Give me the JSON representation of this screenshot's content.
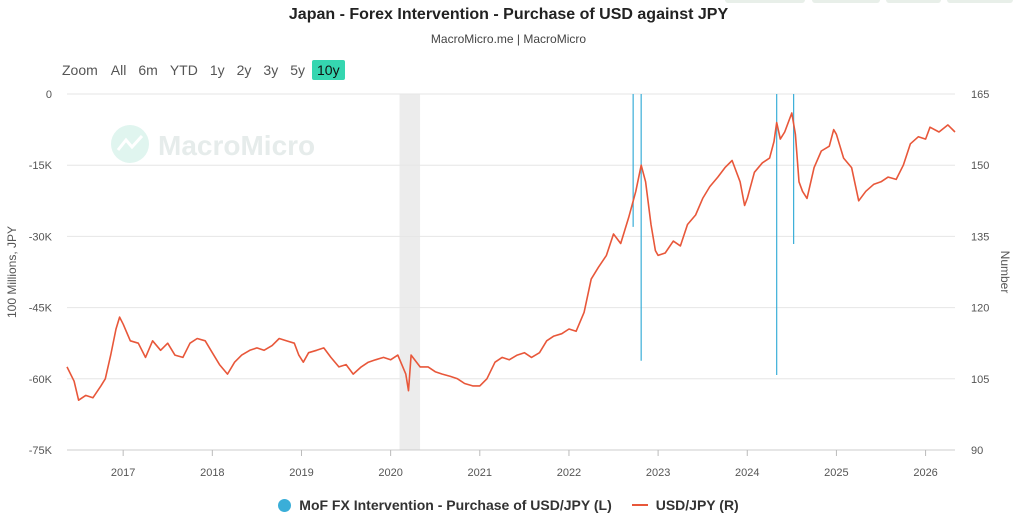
{
  "chart_data": {
    "type": "line",
    "title": "Japan - Forex Intervention - Purchase of USD against JPY",
    "subtitle": "MacroMicro.me | MacroMicro",
    "watermark": "MacroMicro",
    "zoom": {
      "label": "Zoom",
      "options": [
        "All",
        "6m",
        "YTD",
        "1y",
        "2y",
        "3y",
        "5y",
        "10y"
      ],
      "selected": "10y"
    },
    "left_axis": {
      "label": "100 Millions, JPY",
      "ticks": [
        0,
        -15000,
        -30000,
        -45000,
        -60000,
        -75000
      ],
      "tick_labels": [
        "0",
        "-15K",
        "-30K",
        "-45K",
        "-60K",
        "-75K"
      ],
      "range": [
        -75000,
        0
      ]
    },
    "right_axis": {
      "label": "Number",
      "ticks": [
        165,
        150,
        135,
        120,
        105,
        90
      ],
      "tick_labels": [
        "165",
        "150",
        "135",
        "120",
        "105",
        "90"
      ],
      "range": [
        90,
        165
      ]
    },
    "x_axis": {
      "range": [
        "2016-05",
        "2026-05"
      ],
      "tick_labels": [
        "2017",
        "2018",
        "2019",
        "2020",
        "2021",
        "2022",
        "2023",
        "2024",
        "2025",
        "2026"
      ],
      "tick_values": [
        2017,
        2018,
        2019,
        2020,
        2021,
        2022,
        2023,
        2024,
        2025,
        2026
      ]
    },
    "recession_band": {
      "start": 2020.1,
      "end": 2020.33
    },
    "grid": true,
    "legend_position": "bottom",
    "series": [
      {
        "name": "MoF FX Intervention - Purchase of USD/JPY (L)",
        "axis": "left",
        "style": "spike",
        "color": "#3aaed8",
        "points": [
          {
            "x": 2022.72,
            "y": -28000
          },
          {
            "x": 2022.81,
            "y": -56200
          },
          {
            "x": 2024.33,
            "y": -59200
          },
          {
            "x": 2024.52,
            "y": -31600
          }
        ]
      },
      {
        "name": "USD/JPY (R)",
        "axis": "right",
        "style": "line",
        "color": "#e8573a",
        "points": [
          [
            2016.37,
            107.5
          ],
          [
            2016.45,
            104.5
          ],
          [
            2016.5,
            100.5
          ],
          [
            2016.58,
            101.5
          ],
          [
            2016.66,
            101.0
          ],
          [
            2016.75,
            103.5
          ],
          [
            2016.8,
            105.0
          ],
          [
            2016.86,
            110.0
          ],
          [
            2016.92,
            115.5
          ],
          [
            2016.96,
            118.0
          ],
          [
            2017.0,
            116.5
          ],
          [
            2017.08,
            113.0
          ],
          [
            2017.17,
            112.5
          ],
          [
            2017.25,
            109.5
          ],
          [
            2017.33,
            113.0
          ],
          [
            2017.42,
            111.0
          ],
          [
            2017.5,
            112.5
          ],
          [
            2017.58,
            110.0
          ],
          [
            2017.67,
            109.5
          ],
          [
            2017.75,
            112.5
          ],
          [
            2017.83,
            113.5
          ],
          [
            2017.92,
            113.0
          ],
          [
            2018.0,
            110.5
          ],
          [
            2018.08,
            108.0
          ],
          [
            2018.17,
            106.0
          ],
          [
            2018.25,
            108.5
          ],
          [
            2018.33,
            110.0
          ],
          [
            2018.42,
            111.0
          ],
          [
            2018.5,
            111.5
          ],
          [
            2018.58,
            111.0
          ],
          [
            2018.67,
            112.0
          ],
          [
            2018.75,
            113.5
          ],
          [
            2018.83,
            113.0
          ],
          [
            2018.92,
            112.5
          ],
          [
            2018.97,
            110.0
          ],
          [
            2019.02,
            108.5
          ],
          [
            2019.08,
            110.5
          ],
          [
            2019.17,
            111.0
          ],
          [
            2019.25,
            111.5
          ],
          [
            2019.33,
            109.5
          ],
          [
            2019.42,
            107.5
          ],
          [
            2019.5,
            108.0
          ],
          [
            2019.58,
            106.0
          ],
          [
            2019.67,
            107.5
          ],
          [
            2019.75,
            108.5
          ],
          [
            2019.83,
            109.0
          ],
          [
            2019.92,
            109.5
          ],
          [
            2020.0,
            109.0
          ],
          [
            2020.08,
            110.0
          ],
          [
            2020.17,
            106.0
          ],
          [
            2020.2,
            102.5
          ],
          [
            2020.23,
            110.0
          ],
          [
            2020.33,
            107.5
          ],
          [
            2020.42,
            107.5
          ],
          [
            2020.5,
            106.5
          ],
          [
            2020.58,
            106.0
          ],
          [
            2020.67,
            105.5
          ],
          [
            2020.75,
            105.0
          ],
          [
            2020.83,
            104.0
          ],
          [
            2020.92,
            103.5
          ],
          [
            2021.0,
            103.5
          ],
          [
            2021.08,
            105.0
          ],
          [
            2021.17,
            108.5
          ],
          [
            2021.25,
            109.5
          ],
          [
            2021.33,
            109.0
          ],
          [
            2021.42,
            110.0
          ],
          [
            2021.5,
            110.5
          ],
          [
            2021.58,
            109.5
          ],
          [
            2021.67,
            110.5
          ],
          [
            2021.75,
            113.0
          ],
          [
            2021.83,
            114.0
          ],
          [
            2021.92,
            114.5
          ],
          [
            2022.0,
            115.5
          ],
          [
            2022.08,
            115.0
          ],
          [
            2022.17,
            119.0
          ],
          [
            2022.25,
            126.0
          ],
          [
            2022.33,
            128.5
          ],
          [
            2022.42,
            131.0
          ],
          [
            2022.5,
            135.5
          ],
          [
            2022.58,
            133.5
          ],
          [
            2022.67,
            139.0
          ],
          [
            2022.75,
            144.5
          ],
          [
            2022.81,
            150.0
          ],
          [
            2022.86,
            146.5
          ],
          [
            2022.92,
            137.5
          ],
          [
            2022.97,
            132.0
          ],
          [
            2023.0,
            131.0
          ],
          [
            2023.08,
            131.5
          ],
          [
            2023.17,
            134.0
          ],
          [
            2023.25,
            133.0
          ],
          [
            2023.33,
            137.5
          ],
          [
            2023.42,
            139.5
          ],
          [
            2023.5,
            143.0
          ],
          [
            2023.58,
            145.5
          ],
          [
            2023.67,
            147.5
          ],
          [
            2023.75,
            149.5
          ],
          [
            2023.83,
            151.0
          ],
          [
            2023.92,
            146.5
          ],
          [
            2023.97,
            141.5
          ],
          [
            2024.0,
            143.0
          ],
          [
            2024.08,
            148.5
          ],
          [
            2024.17,
            150.5
          ],
          [
            2024.25,
            151.5
          ],
          [
            2024.3,
            155.0
          ],
          [
            2024.33,
            159.0
          ],
          [
            2024.37,
            155.5
          ],
          [
            2024.42,
            157.0
          ],
          [
            2024.5,
            161.0
          ],
          [
            2024.54,
            156.5
          ],
          [
            2024.58,
            146.5
          ],
          [
            2024.62,
            144.5
          ],
          [
            2024.67,
            143.0
          ],
          [
            2024.75,
            149.5
          ],
          [
            2024.83,
            153.0
          ],
          [
            2024.92,
            154.0
          ],
          [
            2024.97,
            157.5
          ],
          [
            2025.0,
            156.5
          ],
          [
            2025.08,
            151.5
          ],
          [
            2025.17,
            149.5
          ],
          [
            2025.25,
            142.5
          ],
          [
            2025.33,
            144.5
          ],
          [
            2025.42,
            146.0
          ],
          [
            2025.5,
            146.5
          ],
          [
            2025.58,
            147.5
          ],
          [
            2025.67,
            147.0
          ],
          [
            2025.75,
            150.0
          ],
          [
            2025.83,
            154.5
          ],
          [
            2025.92,
            156.0
          ],
          [
            2026.0,
            155.5
          ],
          [
            2026.05,
            158.0
          ],
          [
            2026.15,
            157.0
          ],
          [
            2026.25,
            158.5
          ],
          [
            2026.33,
            157.0
          ]
        ]
      }
    ]
  }
}
